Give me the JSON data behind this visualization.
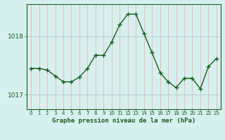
{
  "x": [
    0,
    1,
    2,
    3,
    4,
    5,
    6,
    7,
    8,
    9,
    10,
    11,
    12,
    13,
    14,
    15,
    16,
    17,
    18,
    19,
    20,
    21,
    22,
    23
  ],
  "y": [
    1017.45,
    1017.45,
    1017.42,
    1017.32,
    1017.22,
    1017.22,
    1017.3,
    1017.45,
    1017.68,
    1017.67,
    1017.9,
    1018.2,
    1018.38,
    1018.38,
    1018.05,
    1017.72,
    1017.38,
    1017.22,
    1017.12,
    1017.28,
    1017.28,
    1017.1,
    1017.48,
    1017.62
  ],
  "line_color": "#1a5e1a",
  "marker_color": "#1a5e1a",
  "bg_color": "#d6f0f0",
  "vgrid_color": "#ffaaaa",
  "hgrid_color": "#aacccc",
  "xlabel": "Graphe pression niveau de la mer (hPa)",
  "xlabel_color": "#1a5e1a",
  "tick_color": "#1a5e1a",
  "ylim": [
    1016.75,
    1018.55
  ],
  "yticks": [
    1017.0,
    1018.0
  ],
  "xlim": [
    -0.5,
    23.5
  ],
  "figsize": [
    3.2,
    2.0
  ],
  "dpi": 100
}
